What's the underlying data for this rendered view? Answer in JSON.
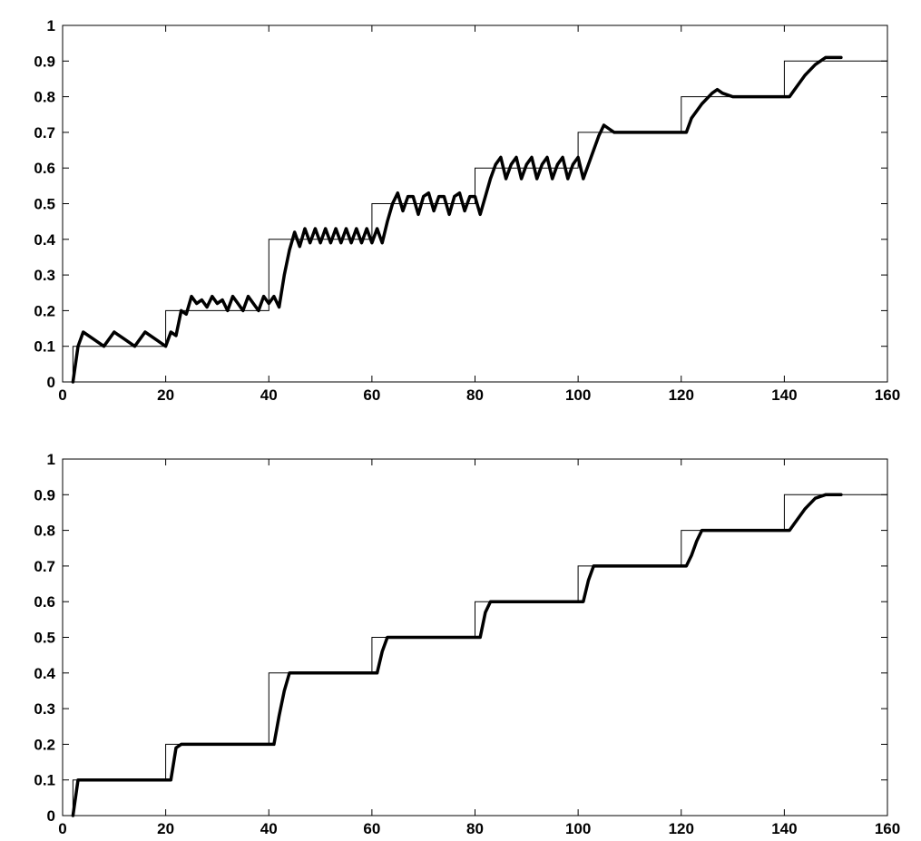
{
  "chart_data": [
    {
      "type": "line",
      "title": "",
      "xlabel": "",
      "ylabel": "",
      "xlim": [
        0,
        160
      ],
      "ylim": [
        0,
        1
      ],
      "xticks": [
        0,
        20,
        40,
        60,
        80,
        100,
        120,
        140,
        160
      ],
      "yticks": [
        0,
        0.1,
        0.2,
        0.3,
        0.4,
        0.5,
        0.6,
        0.7,
        0.8,
        0.9,
        1
      ],
      "xtick_labels": [
        "0",
        "20",
        "40",
        "60",
        "80",
        "100",
        "120",
        "140",
        "160"
      ],
      "ytick_labels": [
        "0",
        "0.1",
        "0.2",
        "0.3",
        "0.4",
        "0.5",
        "0.6",
        "0.7",
        "0.8",
        "0.9",
        "1"
      ],
      "grid": false,
      "series": [
        {
          "style": "thin",
          "x": [
            0,
            1,
            2,
            2,
            20,
            20,
            40,
            40,
            60,
            60,
            80,
            80,
            100,
            100,
            120,
            120,
            140,
            140,
            160
          ],
          "y": [
            0,
            0,
            0,
            0.1,
            0.1,
            0.2,
            0.2,
            0.4,
            0.4,
            0.5,
            0.5,
            0.6,
            0.6,
            0.7,
            0.7,
            0.8,
            0.8,
            0.9,
            0.9
          ]
        },
        {
          "style": "thick",
          "x": [
            2,
            3,
            4,
            6,
            8,
            10,
            12,
            14,
            16,
            18,
            20,
            21,
            22,
            23,
            24,
            25,
            26,
            27,
            28,
            29,
            30,
            31,
            32,
            33,
            34,
            35,
            36,
            37,
            38,
            39,
            40,
            41,
            42,
            43,
            44,
            45,
            46,
            47,
            48,
            49,
            50,
            51,
            52,
            53,
            54,
            55,
            56,
            57,
            58,
            59,
            60,
            61,
            62,
            63,
            64,
            65,
            66,
            67,
            68,
            69,
            70,
            71,
            72,
            73,
            74,
            75,
            76,
            77,
            78,
            79,
            80,
            81,
            82,
            83,
            84,
            85,
            86,
            87,
            88,
            89,
            90,
            91,
            92,
            93,
            94,
            95,
            96,
            97,
            98,
            99,
            100,
            101,
            102,
            103,
            104,
            105,
            106,
            107,
            110,
            115,
            120,
            121,
            122,
            124,
            126,
            127,
            128,
            130,
            133,
            136,
            140,
            141,
            142,
            144,
            146,
            148,
            149,
            150,
            151
          ],
          "y": [
            0,
            0.1,
            0.14,
            0.12,
            0.1,
            0.14,
            0.12,
            0.1,
            0.14,
            0.12,
            0.1,
            0.14,
            0.13,
            0.2,
            0.19,
            0.24,
            0.22,
            0.23,
            0.21,
            0.24,
            0.22,
            0.23,
            0.2,
            0.24,
            0.22,
            0.2,
            0.24,
            0.22,
            0.2,
            0.24,
            0.22,
            0.24,
            0.21,
            0.3,
            0.37,
            0.42,
            0.38,
            0.43,
            0.39,
            0.43,
            0.39,
            0.43,
            0.39,
            0.43,
            0.39,
            0.43,
            0.39,
            0.43,
            0.39,
            0.43,
            0.39,
            0.43,
            0.39,
            0.45,
            0.5,
            0.53,
            0.48,
            0.52,
            0.52,
            0.47,
            0.52,
            0.53,
            0.48,
            0.52,
            0.52,
            0.47,
            0.52,
            0.53,
            0.48,
            0.52,
            0.52,
            0.47,
            0.52,
            0.57,
            0.61,
            0.63,
            0.57,
            0.61,
            0.63,
            0.57,
            0.61,
            0.63,
            0.57,
            0.61,
            0.63,
            0.57,
            0.61,
            0.63,
            0.57,
            0.61,
            0.63,
            0.57,
            0.61,
            0.65,
            0.69,
            0.72,
            0.71,
            0.7,
            0.7,
            0.7,
            0.7,
            0.7,
            0.74,
            0.78,
            0.81,
            0.82,
            0.81,
            0.8,
            0.8,
            0.8,
            0.8,
            0.8,
            0.82,
            0.86,
            0.89,
            0.91,
            0.91,
            0.91,
            0.91
          ]
        }
      ]
    },
    {
      "type": "line",
      "title": "",
      "xlabel": "",
      "ylabel": "",
      "xlim": [
        0,
        160
      ],
      "ylim": [
        0,
        1
      ],
      "xticks": [
        0,
        20,
        40,
        60,
        80,
        100,
        120,
        140,
        160
      ],
      "yticks": [
        0,
        0.1,
        0.2,
        0.3,
        0.4,
        0.5,
        0.6,
        0.7,
        0.8,
        0.9,
        1
      ],
      "xtick_labels": [
        "0",
        "20",
        "40",
        "60",
        "80",
        "100",
        "120",
        "140",
        "160"
      ],
      "ytick_labels": [
        "0",
        "0.1",
        "0.2",
        "0.3",
        "0.4",
        "0.5",
        "0.6",
        "0.7",
        "0.8",
        "0.9",
        "1"
      ],
      "grid": false,
      "series": [
        {
          "style": "thin",
          "x": [
            0,
            1,
            2,
            2,
            20,
            20,
            40,
            40,
            60,
            60,
            80,
            80,
            100,
            100,
            120,
            120,
            140,
            140,
            160
          ],
          "y": [
            0,
            0,
            0,
            0.1,
            0.1,
            0.2,
            0.2,
            0.4,
            0.4,
            0.5,
            0.5,
            0.6,
            0.6,
            0.7,
            0.7,
            0.8,
            0.8,
            0.9,
            0.9
          ]
        },
        {
          "style": "thick",
          "x": [
            2,
            3,
            21,
            22,
            23,
            24,
            41,
            42,
            43,
            44,
            61,
            62,
            63,
            64,
            81,
            82,
            83,
            84,
            101,
            102,
            103,
            104,
            121,
            122,
            123,
            124,
            125,
            141,
            142,
            144,
            146,
            148,
            151
          ],
          "y": [
            0,
            0.1,
            0.1,
            0.19,
            0.2,
            0.2,
            0.2,
            0.28,
            0.35,
            0.4,
            0.4,
            0.46,
            0.5,
            0.5,
            0.5,
            0.57,
            0.6,
            0.6,
            0.6,
            0.66,
            0.7,
            0.7,
            0.7,
            0.73,
            0.77,
            0.8,
            0.8,
            0.8,
            0.82,
            0.86,
            0.89,
            0.9,
            0.9
          ]
        }
      ]
    }
  ]
}
